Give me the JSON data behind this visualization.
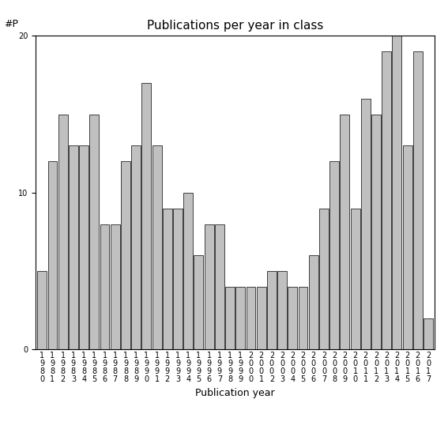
{
  "title": "Publications per year in class",
  "xlabel": "Publication year",
  "ylabel": "#P",
  "bar_color": "#c0c0c0",
  "bar_edgecolor": "#000000",
  "ylim": [
    0,
    20
  ],
  "yticks": [
    0,
    10,
    20
  ],
  "years": [
    "1980",
    "1981",
    "1982",
    "1983",
    "1984",
    "1985",
    "1986",
    "1987",
    "1988",
    "1989",
    "1990",
    "1991",
    "1992",
    "1993",
    "1994",
    "1995",
    "1996",
    "1997",
    "1998",
    "1999",
    "2000",
    "2001",
    "2002",
    "2003",
    "2004",
    "2005",
    "2006",
    "2007",
    "2008",
    "2009",
    "2010",
    "2011",
    "2012",
    "2013",
    "2014",
    "2015",
    "2016",
    "2017"
  ],
  "values": [
    5,
    12,
    15,
    13,
    13,
    15,
    8,
    8,
    12,
    13,
    17,
    13,
    9,
    9,
    10,
    6,
    8,
    8,
    4,
    4,
    4,
    4,
    5,
    5,
    4,
    4,
    6,
    9,
    12,
    15,
    9,
    16,
    15,
    19,
    20,
    13,
    19,
    2
  ],
  "background_color": "#ffffff",
  "title_fontsize": 11,
  "label_fontsize": 9,
  "tick_fontsize": 7
}
